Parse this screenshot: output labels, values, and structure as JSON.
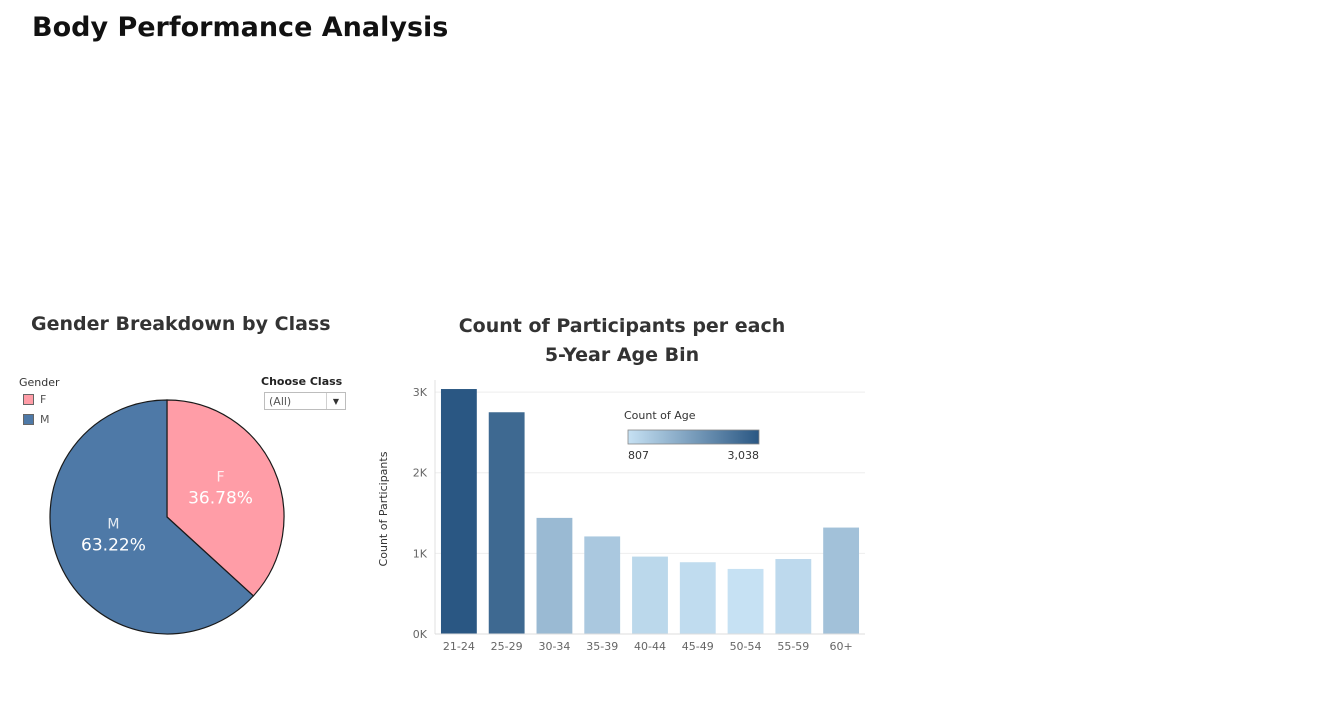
{
  "page": {
    "title": "Body Performance Analysis"
  },
  "pie_panel": {
    "title": "Gender Breakdown by Class",
    "legend_title": "Gender",
    "legend_items": [
      {
        "label": "F",
        "color": "#ff9da7"
      },
      {
        "label": "M",
        "color": "#4e79a7"
      }
    ],
    "filter": {
      "label": "Choose Class",
      "value": "(All)"
    }
  },
  "bar_panel": {
    "title_lines": [
      "Count of Participants per each",
      "5-Year Age Bin"
    ],
    "color_legend": {
      "title": "Count of Age",
      "min_label": "807",
      "max_label": "3,038"
    }
  },
  "chart_data": [
    {
      "type": "pie",
      "title": "Gender Breakdown by Class",
      "legend_title": "Gender",
      "slices": [
        {
          "label": "F",
          "value": 36.78,
          "display": "36.78%",
          "color": "#ff9da7"
        },
        {
          "label": "M",
          "value": 63.22,
          "display": "63.22%",
          "color": "#4e79a7"
        }
      ]
    },
    {
      "type": "bar",
      "title": "Count of Participants per each 5-Year Age Bin",
      "xlabel": "",
      "ylabel": "Count of Participants",
      "categories": [
        "21-24",
        "25-29",
        "30-34",
        "35-39",
        "40-44",
        "45-49",
        "50-54",
        "55-59",
        "60+"
      ],
      "values": [
        3038,
        2750,
        1440,
        1210,
        960,
        890,
        807,
        930,
        1320
      ],
      "ylim": [
        0,
        3000
      ],
      "yticks": [
        0,
        1000,
        2000,
        3000
      ],
      "ytick_labels": [
        "0K",
        "1K",
        "2K",
        "3K"
      ],
      "color_scale": {
        "min": 807,
        "max": 3038,
        "min_color": "#c6e1f3",
        "max_color": "#2a5783"
      },
      "grid": true
    }
  ]
}
